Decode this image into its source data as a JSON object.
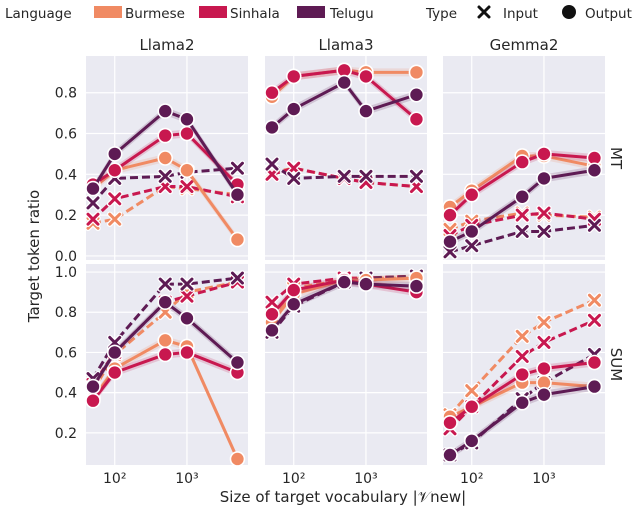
{
  "legend": {
    "language_title": "Language",
    "type_title": "Type",
    "languages": [
      {
        "name": "Burmese",
        "color": "#f08a63"
      },
      {
        "name": "Sinhala",
        "color": "#c8184f"
      },
      {
        "name": "Telugu",
        "color": "#5e1b54"
      }
    ],
    "types": [
      {
        "name": "Input",
        "marker": "x"
      },
      {
        "name": "Output",
        "marker": "circle"
      }
    ]
  },
  "xlabel": "Size of target vocabulary |𝒱new|",
  "ylabel": "Target token ratio",
  "columns": [
    "Llama2",
    "Llama3",
    "Gemma2"
  ],
  "rows": [
    "MT",
    "SUM"
  ],
  "x_tick_labels": [
    "10²",
    "10³"
  ],
  "y_ticks": {
    "MT": [
      "0.0",
      "0.2",
      "0.4",
      "0.6",
      "0.8"
    ],
    "SUM": [
      "0.2",
      "0.4",
      "0.6",
      "0.8",
      "1.0"
    ]
  },
  "chart_data": {
    "type": "line",
    "x": [
      50,
      100,
      500,
      1000,
      5000
    ],
    "x_scale": "log",
    "xlim": [
      40,
      7000
    ],
    "ylim": {
      "MT": [
        -0.02,
        0.98
      ],
      "SUM": [
        0.04,
        1.04
      ]
    },
    "grid": true,
    "legend_position": "top",
    "panels": [
      {
        "row": "MT",
        "col": "Llama2",
        "series": [
          {
            "language": "Burmese",
            "type": "Output",
            "values": [
              0.33,
              0.42,
              0.48,
              0.42,
              0.08
            ]
          },
          {
            "language": "Sinhala",
            "type": "Output",
            "values": [
              0.35,
              0.42,
              0.59,
              0.6,
              0.35
            ]
          },
          {
            "language": "Telugu",
            "type": "Output",
            "values": [
              0.33,
              0.5,
              0.71,
              0.67,
              0.3
            ]
          },
          {
            "language": "Burmese",
            "type": "Input",
            "values": [
              0.16,
              0.18,
              0.34,
              0.33,
              0.3
            ]
          },
          {
            "language": "Sinhala",
            "type": "Input",
            "values": [
              0.18,
              0.28,
              0.34,
              0.34,
              0.29
            ]
          },
          {
            "language": "Telugu",
            "type": "Input",
            "values": [
              0.26,
              0.38,
              0.39,
              0.41,
              0.43
            ]
          }
        ]
      },
      {
        "row": "MT",
        "col": "Llama3",
        "series": [
          {
            "language": "Burmese",
            "type": "Output",
            "values": [
              0.78,
              0.88,
              0.91,
              0.9,
              0.9
            ]
          },
          {
            "language": "Sinhala",
            "type": "Output",
            "values": [
              0.8,
              0.88,
              0.91,
              0.88,
              0.67
            ]
          },
          {
            "language": "Telugu",
            "type": "Output",
            "values": [
              0.63,
              0.72,
              0.85,
              0.71,
              0.79
            ]
          },
          {
            "language": "Burmese",
            "type": "Input",
            "values": [
              0.41,
              0.43,
              0.38,
              0.36,
              0.34
            ]
          },
          {
            "language": "Sinhala",
            "type": "Input",
            "values": [
              0.4,
              0.43,
              0.38,
              0.36,
              0.34
            ]
          },
          {
            "language": "Telugu",
            "type": "Input",
            "values": [
              0.45,
              0.38,
              0.39,
              0.39,
              0.39
            ]
          }
        ]
      },
      {
        "row": "MT",
        "col": "Gemma2",
        "series": [
          {
            "language": "Burmese",
            "type": "Output",
            "values": [
              0.24,
              0.32,
              0.49,
              0.49,
              0.44
            ]
          },
          {
            "language": "Sinhala",
            "type": "Output",
            "values": [
              0.2,
              0.3,
              0.46,
              0.5,
              0.48
            ]
          },
          {
            "language": "Telugu",
            "type": "Output",
            "values": [
              0.07,
              0.12,
              0.29,
              0.38,
              0.42
            ]
          },
          {
            "language": "Burmese",
            "type": "Input",
            "values": [
              0.13,
              0.17,
              0.21,
              0.2,
              0.19
            ]
          },
          {
            "language": "Sinhala",
            "type": "Input",
            "values": [
              0.1,
              0.15,
              0.2,
              0.21,
              0.18
            ]
          },
          {
            "language": "Telugu",
            "type": "Input",
            "values": [
              0.02,
              0.05,
              0.12,
              0.12,
              0.15
            ]
          }
        ]
      },
      {
        "row": "SUM",
        "col": "Llama2",
        "series": [
          {
            "language": "Burmese",
            "type": "Output",
            "values": [
              0.37,
              0.52,
              0.66,
              0.63,
              0.07
            ]
          },
          {
            "language": "Sinhala",
            "type": "Output",
            "values": [
              0.36,
              0.5,
              0.59,
              0.6,
              0.5
            ]
          },
          {
            "language": "Telugu",
            "type": "Output",
            "values": [
              0.43,
              0.6,
              0.85,
              0.77,
              0.55
            ]
          },
          {
            "language": "Burmese",
            "type": "Input",
            "values": [
              0.41,
              0.59,
              0.8,
              0.9,
              0.95
            ]
          },
          {
            "language": "Sinhala",
            "type": "Input",
            "values": [
              0.44,
              0.6,
              0.85,
              0.88,
              0.95
            ]
          },
          {
            "language": "Telugu",
            "type": "Input",
            "values": [
              0.47,
              0.65,
              0.94,
              0.94,
              0.97
            ]
          }
        ]
      },
      {
        "row": "SUM",
        "col": "Llama3",
        "series": [
          {
            "language": "Burmese",
            "type": "Output",
            "values": [
              0.75,
              0.89,
              0.96,
              0.96,
              0.97
            ]
          },
          {
            "language": "Sinhala",
            "type": "Output",
            "values": [
              0.79,
              0.91,
              0.96,
              0.94,
              0.9
            ]
          },
          {
            "language": "Telugu",
            "type": "Output",
            "values": [
              0.71,
              0.84,
              0.95,
              0.94,
              0.93
            ]
          },
          {
            "language": "Burmese",
            "type": "Input",
            "values": [
              0.77,
              0.92,
              0.96,
              0.97,
              0.97
            ]
          },
          {
            "language": "Sinhala",
            "type": "Input",
            "values": [
              0.85,
              0.94,
              0.97,
              0.97,
              0.98
            ]
          },
          {
            "language": "Telugu",
            "type": "Input",
            "values": [
              0.7,
              0.83,
              0.95,
              0.97,
              0.98
            ]
          }
        ]
      },
      {
        "row": "SUM",
        "col": "Gemma2",
        "series": [
          {
            "language": "Burmese",
            "type": "Output",
            "values": [
              0.28,
              0.33,
              0.45,
              0.45,
              0.43
            ]
          },
          {
            "language": "Sinhala",
            "type": "Output",
            "values": [
              0.25,
              0.33,
              0.49,
              0.52,
              0.55
            ]
          },
          {
            "language": "Telugu",
            "type": "Output",
            "values": [
              0.09,
              0.16,
              0.35,
              0.39,
              0.43
            ]
          },
          {
            "language": "Burmese",
            "type": "Input",
            "values": [
              0.29,
              0.41,
              0.68,
              0.75,
              0.86
            ]
          },
          {
            "language": "Sinhala",
            "type": "Input",
            "values": [
              0.22,
              0.33,
              0.58,
              0.65,
              0.76
            ]
          },
          {
            "language": "Telugu",
            "type": "Input",
            "values": [
              0.09,
              0.15,
              0.37,
              0.45,
              0.59
            ]
          }
        ]
      }
    ]
  }
}
